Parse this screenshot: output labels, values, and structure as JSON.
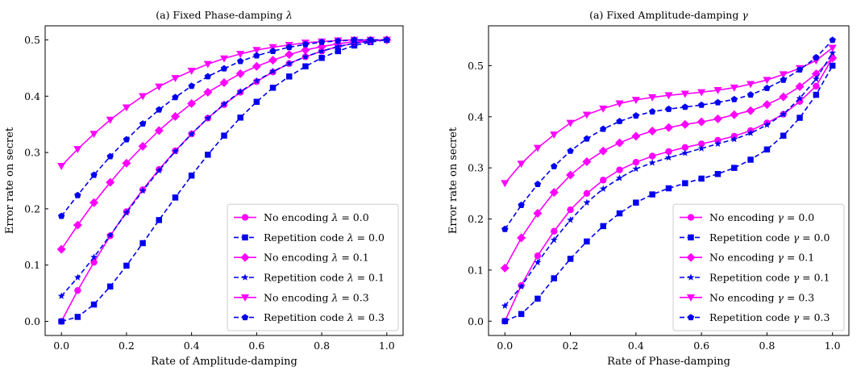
{
  "chart_data": [
    {
      "type": "line",
      "title": "(a) Fixed Phase-damping λ",
      "xlabel": "Rate of Amplitude-damping",
      "ylabel": "Error rate on secret",
      "xlim": [
        -0.05,
        1.05
      ],
      "ylim": [
        -0.025,
        0.525
      ],
      "xticks": [
        "0.0",
        "0.2",
        "0.4",
        "0.6",
        "0.8",
        "1.0"
      ],
      "yticks": [
        "0.0",
        "0.1",
        "0.2",
        "0.3",
        "0.4",
        "0.5"
      ],
      "legend_position": "bottom-right",
      "x": [
        0.0,
        0.05,
        0.1,
        0.15,
        0.2,
        0.25,
        0.3,
        0.35,
        0.4,
        0.45,
        0.5,
        0.55,
        0.6,
        0.65,
        0.7,
        0.75,
        0.8,
        0.85,
        0.9,
        0.95,
        1.0
      ],
      "series": [
        {
          "name": "No encoding λ = 0.0",
          "color": "#ff00ff",
          "dash": "solid",
          "marker": "circle",
          "values": [
            0.0,
            0.055,
            0.105,
            0.152,
            0.195,
            0.234,
            0.27,
            0.303,
            0.333,
            0.361,
            0.385,
            0.407,
            0.426,
            0.443,
            0.458,
            0.47,
            0.48,
            0.488,
            0.494,
            0.498,
            0.5
          ]
        },
        {
          "name": "Repetition code λ = 0.0",
          "color": "#0000ee",
          "dash": "dashed",
          "marker": "square",
          "values": [
            0.0,
            0.008,
            0.03,
            0.062,
            0.099,
            0.139,
            0.18,
            0.22,
            0.259,
            0.296,
            0.33,
            0.362,
            0.39,
            0.415,
            0.435,
            0.453,
            0.468,
            0.48,
            0.49,
            0.496,
            0.5
          ]
        },
        {
          "name": "No encoding λ = 0.1",
          "color": "#ff00ff",
          "dash": "solid",
          "marker": "diamond",
          "values": [
            0.128,
            0.171,
            0.211,
            0.247,
            0.281,
            0.311,
            0.339,
            0.364,
            0.387,
            0.407,
            0.424,
            0.44,
            0.453,
            0.464,
            0.474,
            0.482,
            0.488,
            0.493,
            0.497,
            0.499,
            0.5
          ]
        },
        {
          "name": "Repetition code λ = 0.1",
          "color": "#0000ee",
          "dash": "dashed",
          "marker": "star",
          "values": [
            0.045,
            0.078,
            0.114,
            0.153,
            0.193,
            0.232,
            0.268,
            0.302,
            0.333,
            0.361,
            0.386,
            0.408,
            0.427,
            0.444,
            0.458,
            0.47,
            0.48,
            0.488,
            0.494,
            0.498,
            0.5
          ]
        },
        {
          "name": "No encoding λ = 0.3",
          "color": "#ff00ff",
          "dash": "solid",
          "marker": "triangle-down",
          "values": [
            0.276,
            0.306,
            0.333,
            0.358,
            0.38,
            0.4,
            0.417,
            0.432,
            0.445,
            0.457,
            0.467,
            0.475,
            0.482,
            0.487,
            0.491,
            0.495,
            0.497,
            0.499,
            0.5,
            0.5,
            0.5
          ]
        },
        {
          "name": "Repetition code λ = 0.3",
          "color": "#0000ee",
          "dash": "dashed",
          "marker": "pentagon",
          "values": [
            0.187,
            0.224,
            0.26,
            0.293,
            0.323,
            0.351,
            0.376,
            0.398,
            0.418,
            0.435,
            0.449,
            0.462,
            0.472,
            0.48,
            0.487,
            0.492,
            0.496,
            0.498,
            0.5,
            0.5,
            0.5
          ]
        }
      ]
    },
    {
      "type": "line",
      "title": "(a) Fixed Amplitude-damping γ",
      "xlabel": "Rate of Phase-damping",
      "ylabel": "Error rate on secret",
      "xlim": [
        -0.05,
        1.05
      ],
      "ylim": [
        -0.028,
        0.578
      ],
      "xticks": [
        "0.0",
        "0.2",
        "0.4",
        "0.6",
        "0.8",
        "1.0"
      ],
      "yticks": [
        "0.0",
        "0.1",
        "0.2",
        "0.3",
        "0.4",
        "0.5"
      ],
      "legend_position": "bottom-right",
      "x": [
        0.0,
        0.05,
        0.1,
        0.15,
        0.2,
        0.25,
        0.3,
        0.35,
        0.4,
        0.45,
        0.5,
        0.55,
        0.6,
        0.65,
        0.7,
        0.75,
        0.8,
        0.85,
        0.9,
        0.95,
        1.0
      ],
      "series": [
        {
          "name": "No encoding γ = 0.0",
          "color": "#ff00ff",
          "dash": "solid",
          "marker": "circle",
          "values": [
            0.0,
            0.07,
            0.128,
            0.176,
            0.218,
            0.25,
            0.276,
            0.296,
            0.311,
            0.323,
            0.332,
            0.34,
            0.347,
            0.354,
            0.362,
            0.373,
            0.388,
            0.405,
            0.43,
            0.46,
            0.515
          ]
        },
        {
          "name": "Repetition code γ = 0.0",
          "color": "#0000ee",
          "dash": "dashed",
          "marker": "square",
          "values": [
            0.0,
            0.014,
            0.044,
            0.084,
            0.122,
            0.156,
            0.186,
            0.211,
            0.232,
            0.248,
            0.26,
            0.27,
            0.279,
            0.288,
            0.3,
            0.316,
            0.336,
            0.363,
            0.398,
            0.443,
            0.5
          ]
        },
        {
          "name": "No encoding γ = 0.1",
          "color": "#ff00ff",
          "dash": "solid",
          "marker": "diamond",
          "values": [
            0.104,
            0.163,
            0.211,
            0.252,
            0.286,
            0.312,
            0.333,
            0.349,
            0.362,
            0.372,
            0.379,
            0.385,
            0.39,
            0.396,
            0.404,
            0.412,
            0.424,
            0.439,
            0.459,
            0.484,
            0.515
          ]
        },
        {
          "name": "Repetition code γ = 0.1",
          "color": "#0000ee",
          "dash": "dashed",
          "marker": "star",
          "values": [
            0.03,
            0.068,
            0.115,
            0.159,
            0.198,
            0.232,
            0.259,
            0.28,
            0.298,
            0.31,
            0.32,
            0.329,
            0.338,
            0.347,
            0.356,
            0.368,
            0.384,
            0.405,
            0.436,
            0.474,
            0.525
          ]
        },
        {
          "name": "No encoding γ = 0.3",
          "color": "#ff00ff",
          "dash": "solid",
          "marker": "triangle-down",
          "values": [
            0.27,
            0.308,
            0.339,
            0.365,
            0.388,
            0.404,
            0.416,
            0.426,
            0.433,
            0.438,
            0.442,
            0.445,
            0.448,
            0.452,
            0.457,
            0.464,
            0.472,
            0.483,
            0.495,
            0.51,
            0.535
          ]
        },
        {
          "name": "Repetition code γ = 0.3",
          "color": "#0000ee",
          "dash": "dashed",
          "marker": "pentagon",
          "values": [
            0.18,
            0.227,
            0.268,
            0.303,
            0.333,
            0.357,
            0.376,
            0.391,
            0.402,
            0.41,
            0.415,
            0.419,
            0.423,
            0.428,
            0.434,
            0.443,
            0.456,
            0.472,
            0.492,
            0.516,
            0.55
          ]
        }
      ]
    }
  ]
}
